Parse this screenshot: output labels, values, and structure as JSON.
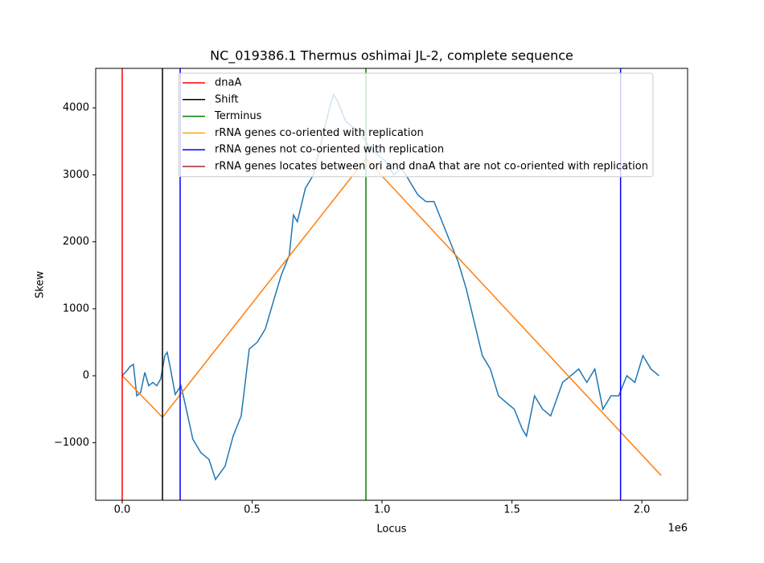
{
  "chart_data": {
    "type": "line",
    "title": "NC_019386.1 Thermus oshimai JL-2, complete sequence",
    "xlabel": "Locus",
    "ylabel": "Skew",
    "x_offset_label": "1e6",
    "xlim": [
      -102000,
      2176000
    ],
    "ylim": [
      -1860,
      4590
    ],
    "xticks": [
      {
        "value": 0,
        "label": "0.0"
      },
      {
        "value": 500000,
        "label": "0.5"
      },
      {
        "value": 1000000,
        "label": "1.0"
      },
      {
        "value": 1500000,
        "label": "1.5"
      },
      {
        "value": 2000000,
        "label": "2.0"
      }
    ],
    "yticks": [
      {
        "value": -1000,
        "label": "−1000"
      },
      0,
      1000,
      2000,
      3000,
      4000
    ],
    "series": [
      {
        "color": "#1f77b4",
        "x": [
          0,
          19000,
          31000,
          43000,
          49000,
          56000,
          71000,
          87000,
          102000,
          118000,
          133000,
          148000,
          164000,
          173000,
          186000,
          204000,
          226000,
          241000,
          272000,
          303000,
          334000,
          359000,
          396000,
          427000,
          458000,
          489000,
          520000,
          551000,
          581000,
          612000,
          643000,
          659000,
          674000,
          705000,
          736000,
          767000,
          798000,
          813000,
          829000,
          860000,
          891000,
          922000,
          953000,
          984000,
          1015000,
          1045000,
          1076000,
          1107000,
          1138000,
          1169000,
          1200000,
          1231000,
          1262000,
          1293000,
          1324000,
          1355000,
          1386000,
          1417000,
          1448000,
          1478000,
          1509000,
          1540000,
          1556000,
          1587000,
          1618000,
          1649000,
          1695000,
          1726000,
          1757000,
          1788000,
          1819000,
          1850000,
          1881000,
          1911000,
          1942000,
          1973000,
          2004000,
          2035000,
          2066000
        ],
        "values": [
          0,
          80,
          140,
          170,
          -40,
          -300,
          -250,
          50,
          -150,
          -100,
          -150,
          -50,
          300,
          350,
          100,
          -280,
          -150,
          -400,
          -950,
          -1150,
          -1250,
          -1550,
          -1350,
          -900,
          -600,
          400,
          500,
          700,
          1100,
          1500,
          1800,
          2400,
          2300,
          2800,
          3000,
          3500,
          4000,
          4200,
          4100,
          3800,
          3700,
          3600,
          3400,
          3300,
          3200,
          3000,
          3100,
          2900,
          2700,
          2600,
          2600,
          2300,
          2000,
          1700,
          1300,
          800,
          300,
          100,
          -300,
          -400,
          -500,
          -800,
          -900,
          -300,
          -500,
          -600,
          -100,
          0,
          100,
          -100,
          100,
          -500,
          -300,
          -300,
          0,
          -100,
          300,
          100,
          0
        ]
      },
      {
        "color": "#ff7f0e",
        "x": [
          0,
          155000,
          938000,
          2074000
        ],
        "values": [
          0,
          -620,
          3240,
          -1490
        ]
      }
    ],
    "markers": [
      {
        "name": "dnaA",
        "color": "red",
        "x": [
          0
        ]
      },
      {
        "name": "Shift",
        "color": "black",
        "x": [
          155000
        ]
      },
      {
        "name": "Terminus",
        "color": "green",
        "x": [
          938000
        ]
      },
      {
        "name": "rRNA genes co-oriented with replication",
        "color": "orange",
        "x": []
      },
      {
        "name": "rRNA genes not co-oriented with replication",
        "color": "blue",
        "x": [
          223000,
          1918000
        ]
      },
      {
        "name": "rRNA genes locates between ori and dnaA that are not co-oriented with replication",
        "color": "brown",
        "x": []
      }
    ]
  }
}
